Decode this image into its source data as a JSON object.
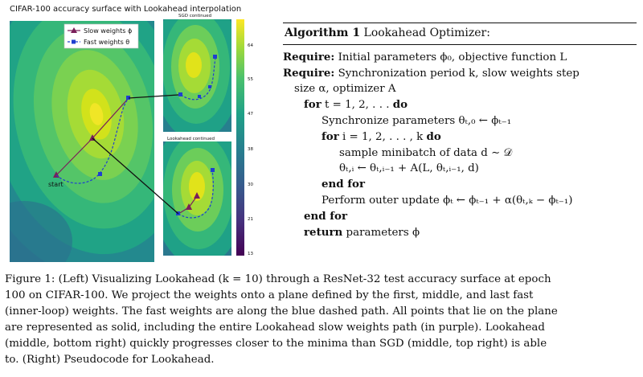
{
  "figure": {
    "main_title": "CIFAR-100 accuracy surface with Lookahead interpolation",
    "panel_sgd_title": "SGD continued",
    "panel_lookahead_title": "Lookahead continued",
    "legend": {
      "slow_label": "Slow weights ϕ",
      "fast_label": "Fast weights θ"
    },
    "start_label": "start",
    "colorbar_ticks": [
      "64",
      "55",
      "47",
      "38",
      "30",
      "21",
      "13"
    ],
    "colors": {
      "slow_path": "#7a1f5a",
      "fast_path": "#1f3fd0",
      "connector": "#111111"
    }
  },
  "algorithm": {
    "title_bold": "Algorithm 1",
    "title_rest": " Lookahead Optimizer:",
    "lines": [
      {
        "kw": "Require:",
        "text": " Initial parameters ϕ₀, objective function L",
        "indent": 0
      },
      {
        "kw": "Require:",
        "text": " Synchronization period k, slow weights step",
        "indent": 0
      },
      {
        "kw": "",
        "text": "size α, optimizer A",
        "indent": 0,
        "cont": true
      },
      {
        "kw": "for",
        "text": " t = 1, 2, . . .  ",
        "kw2": "do",
        "indent": 1
      },
      {
        "kw": "",
        "text": "Synchronize parameters θₜ,₀ ← ϕₜ₋₁",
        "indent": 2
      },
      {
        "kw": "for",
        "text": " i = 1, 2, . . . , k ",
        "kw2": "do",
        "indent": 2
      },
      {
        "kw": "",
        "text": "sample minibatch of data d ∼ 𝒟",
        "indent": 3
      },
      {
        "kw": "",
        "text": "θₜ,ᵢ ← θₜ,ᵢ₋₁ + A(L, θₜ,ᵢ₋₁, d)",
        "indent": 3
      },
      {
        "kw": "end for",
        "text": "",
        "indent": 2
      },
      {
        "kw": "",
        "text": "Perform outer update ϕₜ ← ϕₜ₋₁ + α(θₜ,ₖ − ϕₜ₋₁)",
        "indent": 2
      },
      {
        "kw": "end for",
        "text": "",
        "indent": 1
      },
      {
        "kw": "return",
        "text": " parameters ϕ",
        "indent": 1
      }
    ]
  },
  "caption": {
    "lines": [
      "Figure 1: (Left) Visualizing Lookahead (k = 10) through a ResNet-32 test accuracy surface at epoch",
      "100 on CIFAR-100. We project the weights onto a plane defined by the first, middle, and last fast",
      "(inner-loop) weights. The fast weights are along the blue dashed path. All points that lie on the plane",
      "are represented as solid, including the entire Lookahead slow weights path (in purple). Lookahead",
      "(middle, bottom right) quickly progresses closer to the minima than SGD (middle, top right) is able",
      "to. (Right) Pseudocode for Lookahead."
    ]
  }
}
